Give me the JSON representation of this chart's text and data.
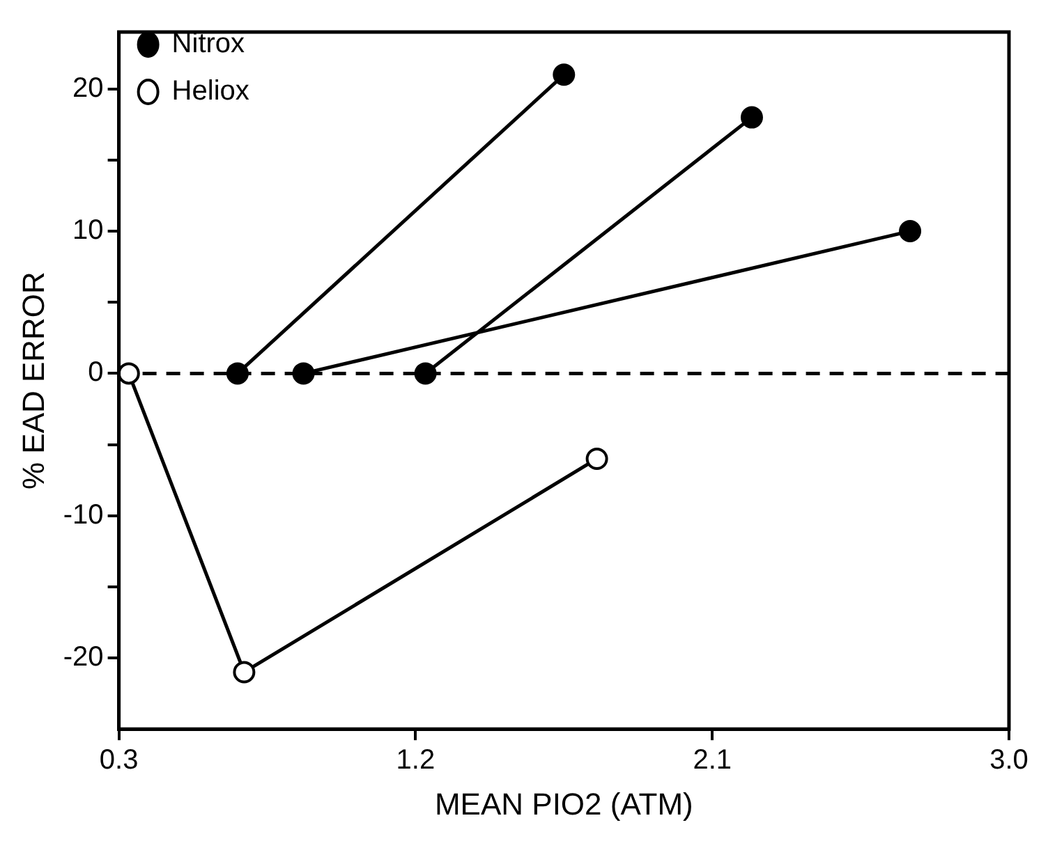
{
  "chart_data": {
    "type": "line",
    "xlabel": "MEAN PIO2 (ATM)",
    "ylabel": "% EAD ERROR",
    "xlim": [
      0.3,
      3.0
    ],
    "xticks": [
      0.3,
      1.2,
      2.1,
      {
        "value": 3,
        "label": "3.0"
      }
    ],
    "ylim": [
      -25,
      24
    ],
    "yticks": [
      -20,
      {
        "value": -15,
        "label": null
      },
      -10,
      {
        "value": -5,
        "label": null
      },
      0,
      {
        "value": 5,
        "label": null
      },
      10,
      {
        "value": 15,
        "label": null
      },
      20
    ],
    "grid": false,
    "legend": "top left",
    "marker": "circle",
    "line_style": "solid",
    "ref_lines": [
      {
        "axis": "y",
        "value": 0,
        "line_style": "dashed",
        "color": "#000000"
      }
    ],
    "series": [
      {
        "name": "Nitrox",
        "color": "#000000",
        "x": [
          0.66,
          1.65
        ],
        "values": [
          0,
          21
        ]
      },
      {
        "color": "#000000",
        "x": [
          0.86,
          2.7
        ],
        "values": [
          0,
          10
        ]
      },
      {
        "color": "#000000",
        "x": [
          1.23,
          2.22
        ],
        "values": [
          0,
          18
        ]
      },
      {
        "name": "Heliox",
        "color": "#ffffff",
        "x": [
          0.33,
          0.68,
          1.75
        ],
        "values": [
          0,
          -21,
          -6
        ]
      }
    ]
  }
}
